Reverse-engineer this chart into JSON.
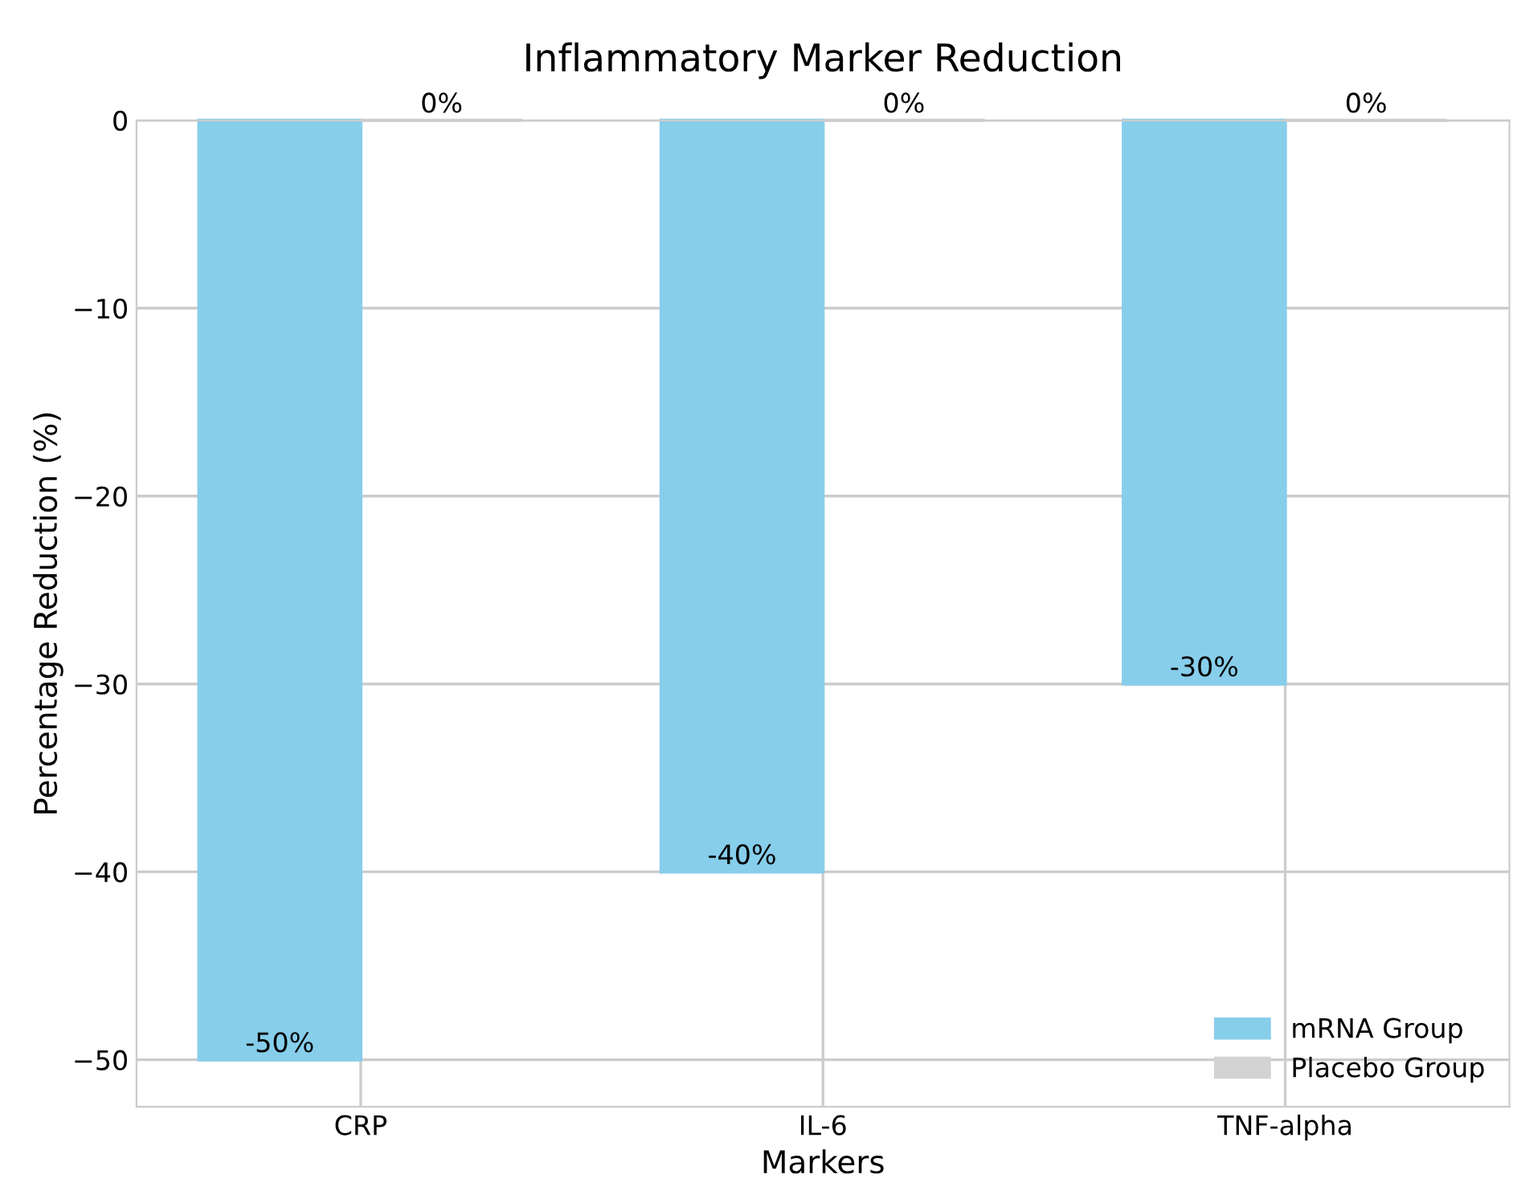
{
  "chart_data": {
    "type": "bar",
    "title": "Inflammatory Marker Reduction",
    "xlabel": "Markers",
    "ylabel": "Percentage Reduction (%)",
    "categories": [
      "CRP",
      "IL-6",
      "TNF-alpha"
    ],
    "series": [
      {
        "name": "mRNA Group",
        "color": "#87ceeb",
        "values": [
          -50,
          -40,
          -30
        ],
        "value_labels": [
          "-50%",
          "-40%",
          "-30%"
        ]
      },
      {
        "name": "Placebo Group",
        "color": "#d3d3d3",
        "values": [
          0,
          0,
          0
        ],
        "value_labels": [
          "0%",
          "0%",
          "0%"
        ]
      }
    ],
    "ylim": [
      -52.5,
      0
    ],
    "yticks": [
      {
        "value": -50,
        "label": "−50"
      },
      {
        "value": -40,
        "label": "−40"
      },
      {
        "value": -30,
        "label": "−30"
      },
      {
        "value": -20,
        "label": "−20"
      },
      {
        "value": -10,
        "label": "−10"
      },
      0
    ],
    "grid": true,
    "legend": "bottom right"
  }
}
